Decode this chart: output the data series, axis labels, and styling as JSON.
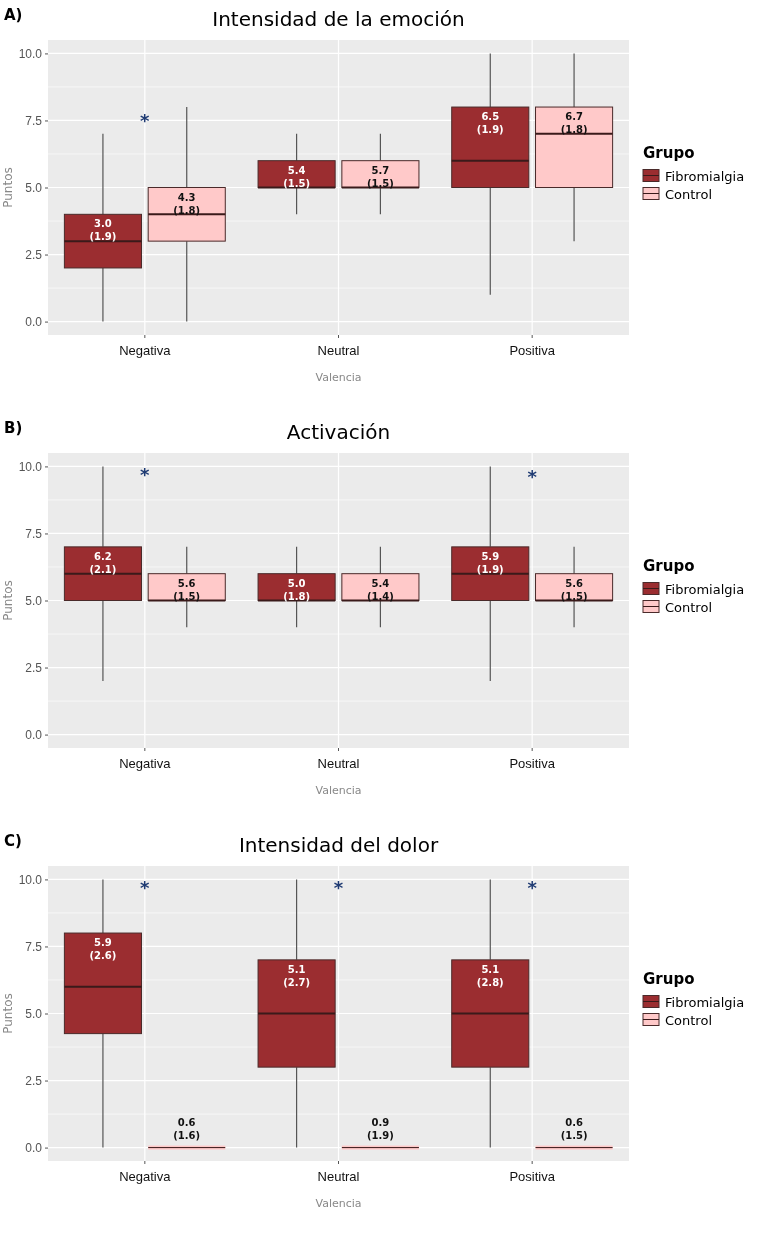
{
  "chart_data": [
    {
      "type": "box",
      "title": "Intensidad de la emoción",
      "xlabel": "Valencia",
      "ylabel": "Puntos",
      "legend_title": "Grupo",
      "legend": "right",
      "grid": true,
      "categories": [
        "Negativa",
        "Neutral",
        "Positiva"
      ],
      "ylim": [
        -0.5,
        10.5
      ],
      "yticks": [
        {
          "value": 0,
          "label": "0.0"
        },
        {
          "value": 2.5,
          "label": "2.5"
        },
        {
          "value": 5,
          "label": "5.0"
        },
        {
          "value": 7.5,
          "label": "7.5"
        },
        {
          "value": 10,
          "label": "10.0"
        }
      ],
      "series": [
        {
          "name": "Fibromialgia",
          "color": "#9b2d30",
          "boxes": [
            {
              "low": 0,
              "q1": 2,
              "median": 3,
              "q3": 4,
              "high": 7
            },
            {
              "low": 4,
              "q1": 5,
              "median": 5,
              "q3": 6,
              "high": 7
            },
            {
              "low": 1,
              "q1": 5,
              "median": 6,
              "q3": 8,
              "high": 10
            }
          ],
          "value_labels": [
            "3.0 (1.9)",
            "5.4 (1.5)",
            "6.5 (1.9)"
          ]
        },
        {
          "name": "Control",
          "color": "#ffc9c9",
          "boxes": [
            {
              "low": 0,
              "q1": 3,
              "median": 4,
              "q3": 5,
              "high": 8
            },
            {
              "low": 4,
              "q1": 5,
              "median": 5,
              "q3": 6,
              "high": 7
            },
            {
              "low": 3,
              "q1": 5,
              "median": 7,
              "q3": 8,
              "high": 10
            }
          ],
          "value_labels": [
            "4.3 (1.8)",
            "5.7 (1.5)",
            "6.7 (1.8)"
          ]
        }
      ],
      "annotations": [
        "A)",
        "*"
      ]
    },
    {
      "type": "box",
      "title": "Activación",
      "xlabel": "Valencia",
      "ylabel": "Puntos",
      "legend_title": "Grupo",
      "legend": "right",
      "grid": true,
      "categories": [
        "Negativa",
        "Neutral",
        "Positiva"
      ],
      "ylim": [
        -0.5,
        10.5
      ],
      "yticks": [
        {
          "value": 0,
          "label": "0.0"
        },
        {
          "value": 2.5,
          "label": "2.5"
        },
        {
          "value": 5,
          "label": "5.0"
        },
        {
          "value": 7.5,
          "label": "7.5"
        },
        {
          "value": 10,
          "label": "10.0"
        }
      ],
      "series": [
        {
          "name": "Fibromialgia",
          "color": "#9b2d30",
          "boxes": [
            {
              "low": 2,
              "q1": 5,
              "median": 6,
              "q3": 7,
              "high": 10
            },
            {
              "low": 4,
              "q1": 5,
              "median": 5,
              "q3": 6,
              "high": 7
            },
            {
              "low": 2,
              "q1": 5,
              "median": 6,
              "q3": 7,
              "high": 10
            }
          ],
          "value_labels": [
            "6.2 (2.1)",
            "5.0 (1.8)",
            "5.9 (1.9)"
          ]
        },
        {
          "name": "Control",
          "color": "#ffc9c9",
          "boxes": [
            {
              "low": 4,
              "q1": 5,
              "median": 5,
              "q3": 6,
              "high": 7
            },
            {
              "low": 4,
              "q1": 5,
              "median": 5,
              "q3": 6,
              "high": 7
            },
            {
              "low": 4,
              "q1": 5,
              "median": 5,
              "q3": 6,
              "high": 7
            }
          ],
          "value_labels": [
            "5.6 (1.5)",
            "5.4 (1.4)",
            "5.6 (1.5)"
          ]
        }
      ],
      "annotations": [
        "B)",
        "*",
        "*"
      ]
    },
    {
      "type": "box",
      "title": "Intensidad del dolor",
      "xlabel": "Valencia",
      "ylabel": "Puntos",
      "legend_title": "Grupo",
      "legend": "right",
      "grid": true,
      "categories": [
        "Negativa",
        "Neutral",
        "Positiva"
      ],
      "ylim": [
        -0.5,
        10.5
      ],
      "yticks": [
        {
          "value": 0,
          "label": "0.0"
        },
        {
          "value": 2.5,
          "label": "2.5"
        },
        {
          "value": 5,
          "label": "5.0"
        },
        {
          "value": 7.5,
          "label": "7.5"
        },
        {
          "value": 10,
          "label": "10.0"
        }
      ],
      "series": [
        {
          "name": "Fibromialgia",
          "color": "#9b2d30",
          "boxes": [
            {
              "low": 0,
              "q1": 4.25,
              "median": 6,
              "q3": 8,
              "high": 10
            },
            {
              "low": 0,
              "q1": 3,
              "median": 5,
              "q3": 7,
              "high": 10
            },
            {
              "low": 0,
              "q1": 3,
              "median": 5,
              "q3": 7,
              "high": 10
            }
          ],
          "value_labels": [
            "5.9 (2.6)",
            "5.1 (2.7)",
            "5.1 (2.8)"
          ]
        },
        {
          "name": "Control",
          "color": "#ffc9c9",
          "boxes": [
            {
              "low": 0,
              "q1": 0,
              "median": 0,
              "q3": 0,
              "high": 0
            },
            {
              "low": 0,
              "q1": 0,
              "median": 0,
              "q3": 0,
              "high": 0
            },
            {
              "low": 0,
              "q1": 0,
              "median": 0,
              "q3": 0,
              "high": 0
            }
          ],
          "value_labels": [
            "0.6 (1.6)",
            "0.9 (1.9)",
            "0.6 (1.5)"
          ]
        }
      ],
      "annotations": [
        "C)",
        "*",
        "*",
        "*"
      ]
    }
  ]
}
